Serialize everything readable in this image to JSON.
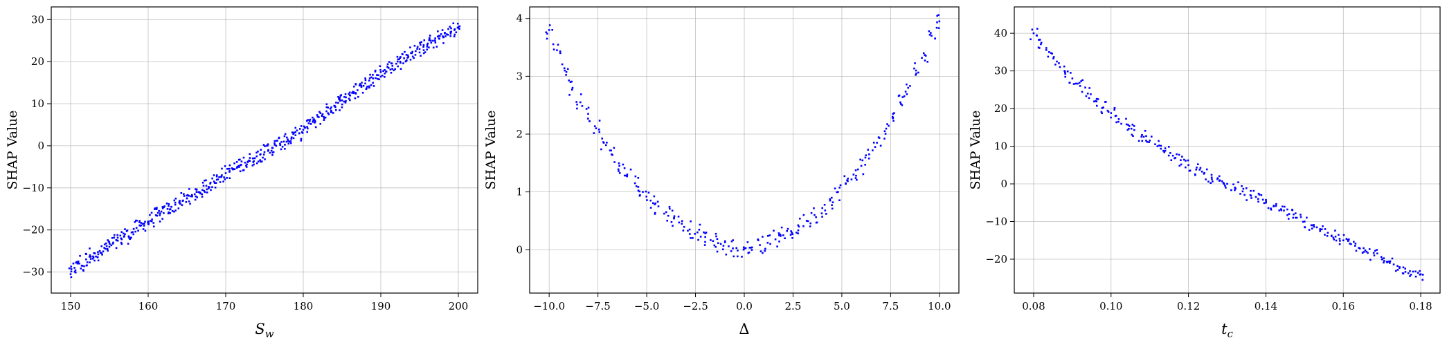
{
  "chart_data": [
    {
      "type": "scatter",
      "xlabel_main": "S",
      "xlabel_sub": "w",
      "ylabel": "SHAP Value",
      "xlim": [
        147.5,
        202.5
      ],
      "ylim": [
        -35,
        33
      ],
      "xticks": [
        150,
        160,
        170,
        180,
        190,
        200
      ],
      "yticks": [
        -30,
        -20,
        -10,
        0,
        10,
        20,
        30
      ],
      "xtick_labels": [
        "150",
        "160",
        "170",
        "180",
        "190",
        "200"
      ],
      "ytick_labels": [
        "−30",
        "−20",
        "−10",
        "0",
        "10",
        "20",
        "30"
      ],
      "grid": true,
      "marker_color": "#0000ff",
      "x": [
        150,
        150.5,
        151,
        151.5,
        152,
        152.5,
        153,
        153.5,
        154,
        154.5,
        155,
        155.5,
        156,
        156.5,
        157,
        157.5,
        158,
        158.5,
        159,
        159.5,
        160,
        160.5,
        161,
        161.5,
        162,
        162.5,
        163,
        163.5,
        164,
        164.5,
        165,
        165.5,
        166,
        166.5,
        167,
        167.5,
        168,
        168.5,
        169,
        169.5,
        170,
        170.5,
        171,
        171.5,
        172,
        172.5,
        173,
        173.5,
        174,
        174.5,
        175,
        175.5,
        176,
        176.5,
        177,
        177.5,
        178,
        178.5,
        179,
        179.5,
        180,
        180.5,
        181,
        181.5,
        182,
        182.5,
        183,
        183.5,
        184,
        184.5,
        185,
        185.5,
        186,
        186.5,
        187,
        187.5,
        188,
        188.5,
        189,
        189.5,
        190,
        190.5,
        191,
        191.5,
        192,
        192.5,
        193,
        193.5,
        194,
        194.5,
        195,
        195.5,
        196,
        196.5,
        197,
        197.5,
        198,
        198.5,
        199,
        199.5,
        200
      ],
      "y": [
        -30.5,
        -29,
        -27.5,
        -28.5,
        -27,
        -26,
        -25.5,
        -26.5,
        -25.5,
        -24.5,
        -24,
        -23,
        -22.5,
        -22,
        -21,
        -21.5,
        -20.5,
        -19.5,
        -19,
        -18.5,
        -18,
        -17.5,
        -16.5,
        -16.5,
        -16,
        -15,
        -14.5,
        -14,
        -13.5,
        -13,
        -12.5,
        -12,
        -11.5,
        -11,
        -10.5,
        -9.5,
        -9,
        -8.5,
        -8,
        -7,
        -6.5,
        -6,
        -5.5,
        -5,
        -4.5,
        -4,
        -3.5,
        -3,
        -2.5,
        -2,
        -1.5,
        -1,
        -0.5,
        0,
        0.5,
        1,
        1.5,
        2,
        2.5,
        3,
        3.8,
        4.5,
        5.2,
        6,
        6.8,
        7.5,
        8.2,
        8.8,
        9.5,
        10.2,
        10.8,
        11.5,
        12,
        12.5,
        13.2,
        14,
        14.8,
        15.5,
        16,
        16.8,
        17.5,
        18,
        18.5,
        19,
        19.5,
        20,
        20.8,
        21.5,
        22,
        22.5,
        23,
        23.5,
        24,
        24.5,
        25,
        25.5,
        26,
        26.5,
        27,
        27.5,
        28
      ],
      "scatter_amp": 1.8
    },
    {
      "type": "scatter",
      "xlabel_main": "Δ",
      "xlabel_sub": "",
      "ylabel": "SHAP Value",
      "xlim": [
        -11,
        11
      ],
      "ylim": [
        -0.75,
        4.2
      ],
      "xticks": [
        -10,
        -7.5,
        -5,
        -2.5,
        0,
        2.5,
        5,
        7.5,
        10
      ],
      "yticks": [
        0,
        1,
        2,
        3,
        4
      ],
      "xtick_labels": [
        "−10.0",
        "−7.5",
        "−5.0",
        "−2.5",
        "0.0",
        "2.5",
        "5.0",
        "7.5",
        "10.0"
      ],
      "ytick_labels": [
        "0",
        "1",
        "2",
        "3",
        "4"
      ],
      "grid": true,
      "marker_color": "#0000ff",
      "x": [
        -10,
        -9.6,
        -9.2,
        -8.8,
        -8.4,
        -8,
        -7.6,
        -7.2,
        -6.8,
        -6.4,
        -6,
        -5.6,
        -5.2,
        -4.8,
        -4.4,
        -4,
        -3.6,
        -3.2,
        -2.8,
        -2.4,
        -2,
        -1.6,
        -1.2,
        -0.8,
        -0.4,
        0,
        0.4,
        0.8,
        1.2,
        1.6,
        2,
        2.4,
        2.8,
        3.2,
        3.6,
        4,
        4.4,
        4.8,
        5.2,
        5.6,
        6,
        6.4,
        6.8,
        7.2,
        7.6,
        8,
        8.4,
        8.8,
        9.2,
        9.6,
        10
      ],
      "y": [
        3.8,
        3.45,
        3.1,
        2.8,
        2.55,
        2.35,
        2.1,
        1.85,
        1.65,
        1.45,
        1.3,
        1.15,
        1.0,
        0.85,
        0.75,
        0.65,
        0.55,
        0.45,
        0.35,
        0.3,
        0.22,
        0.15,
        0.1,
        0.06,
        0.03,
        0.02,
        0.04,
        0.08,
        0.12,
        0.18,
        0.25,
        0.32,
        0.4,
        0.5,
        0.6,
        0.72,
        0.85,
        1.0,
        1.15,
        1.3,
        1.45,
        1.65,
        1.85,
        2.05,
        2.3,
        2.55,
        2.8,
        3.1,
        3.4,
        3.7,
        3.95
      ],
      "scatter_amp": 0.15
    },
    {
      "type": "scatter",
      "xlabel_main": "t",
      "xlabel_sub": "c",
      "ylabel": "SHAP Value",
      "xlim": [
        0.075,
        0.185
      ],
      "ylim": [
        -29,
        47
      ],
      "xticks": [
        0.08,
        0.1,
        0.12,
        0.14,
        0.16,
        0.18
      ],
      "yticks": [
        -20,
        -10,
        0,
        10,
        20,
        30,
        40
      ],
      "xtick_labels": [
        "0.08",
        "0.10",
        "0.12",
        "0.14",
        "0.16",
        "0.18"
      ],
      "ytick_labels": [
        "−20",
        "−10",
        "0",
        "10",
        "20",
        "30",
        "40"
      ],
      "grid": true,
      "marker_color": "#0000ff",
      "x": [
        0.08,
        0.082,
        0.084,
        0.086,
        0.088,
        0.09,
        0.092,
        0.094,
        0.096,
        0.098,
        0.1,
        0.102,
        0.104,
        0.106,
        0.108,
        0.11,
        0.112,
        0.114,
        0.116,
        0.118,
        0.12,
        0.122,
        0.124,
        0.126,
        0.128,
        0.13,
        0.132,
        0.134,
        0.136,
        0.138,
        0.14,
        0.142,
        0.144,
        0.146,
        0.148,
        0.15,
        0.152,
        0.154,
        0.156,
        0.158,
        0.16,
        0.162,
        0.164,
        0.166,
        0.168,
        0.17,
        0.172,
        0.174,
        0.176,
        0.178,
        0.18
      ],
      "y": [
        40,
        37.5,
        35,
        32.5,
        30,
        28,
        26,
        24,
        22,
        20.3,
        18.8,
        17.2,
        15.8,
        14.3,
        13,
        11.5,
        10,
        8.8,
        7.5,
        6.3,
        5,
        3.8,
        2.7,
        1.7,
        0.8,
        0,
        -1,
        -2,
        -3,
        -4,
        -5,
        -6,
        -7,
        -8,
        -9,
        -10,
        -11,
        -12,
        -13,
        -14,
        -15,
        -16,
        -17,
        -18,
        -19,
        -20,
        -21,
        -21.8,
        -22.5,
        -23.3,
        -24
      ],
      "scatter_amp": 1.6
    }
  ]
}
